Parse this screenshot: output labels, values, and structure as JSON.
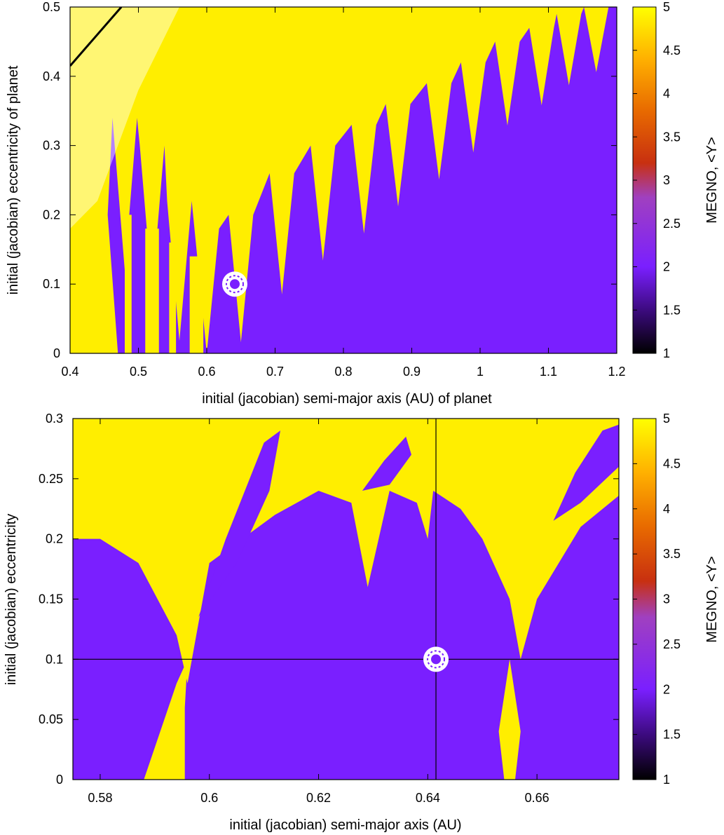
{
  "figure": {
    "colors": {
      "chaotic": "#ffee00",
      "stable": "#7a1fff",
      "axes": "#000000",
      "marker_fill": "#7a1fff",
      "marker_ring": "#ffffff"
    }
  },
  "chart_data": [
    {
      "type": "heatmap",
      "xlabel": "initial (jacobian) semi-major axis (AU) of planet",
      "ylabel": "initial (jacobian) eccentricity of planet",
      "xlim": [
        0.4,
        1.2
      ],
      "ylim": [
        0,
        0.5
      ],
      "xticks": [
        "0.4",
        "0.5",
        "0.6",
        "0.7",
        "0.8",
        "0.9",
        "1",
        "1.1",
        "1.2"
      ],
      "yticks": [
        "0",
        "0.1",
        "0.2",
        "0.3",
        "0.4",
        "0.5"
      ],
      "colorbar": {
        "label": "MEGNO, <Y>",
        "range": [
          1,
          5
        ],
        "ticks": [
          "1",
          "1.5",
          "2",
          "2.5",
          "3",
          "3.5",
          "4",
          "4.5",
          "5"
        ]
      },
      "marker": {
        "a": 0.641,
        "e": 0.1,
        "icon": "planet-marker-icon"
      },
      "spikes": [
        0.48,
        0.52,
        0.56,
        0.6,
        0.65,
        0.71,
        0.77,
        0.83,
        0.88,
        0.94,
        0.99,
        1.04,
        1.09,
        1.13,
        1.17
      ],
      "boundary_e": [
        0.34,
        0.3,
        0.22,
        0.18,
        0.2,
        0.26,
        0.3,
        0.33,
        0.36,
        0.39,
        0.42,
        0.45,
        0.47,
        0.49,
        0.5
      ]
    },
    {
      "type": "heatmap",
      "xlabel": "initial (jacobian) semi-major axis (AU)",
      "ylabel": "initial (jacobian) eccentricity",
      "xlim": [
        0.575,
        0.675
      ],
      "ylim": [
        0,
        0.3
      ],
      "xticks": [
        "0.58",
        "0.6",
        "0.62",
        "0.64",
        "0.66"
      ],
      "yticks": [
        "0",
        "0.05",
        "0.1",
        "0.15",
        "0.2",
        "0.25",
        "0.3"
      ],
      "colorbar": {
        "label": "MEGNO, <Y>",
        "range": [
          1,
          5
        ],
        "ticks": [
          "1",
          "1.5",
          "2",
          "2.5",
          "3",
          "3.5",
          "4",
          "4.5",
          "5"
        ]
      },
      "marker": {
        "a": 0.6415,
        "e": 0.1,
        "icon": "planet-marker-icon"
      },
      "crosshair": {
        "a": 0.6415,
        "e": 0.1
      }
    }
  ]
}
